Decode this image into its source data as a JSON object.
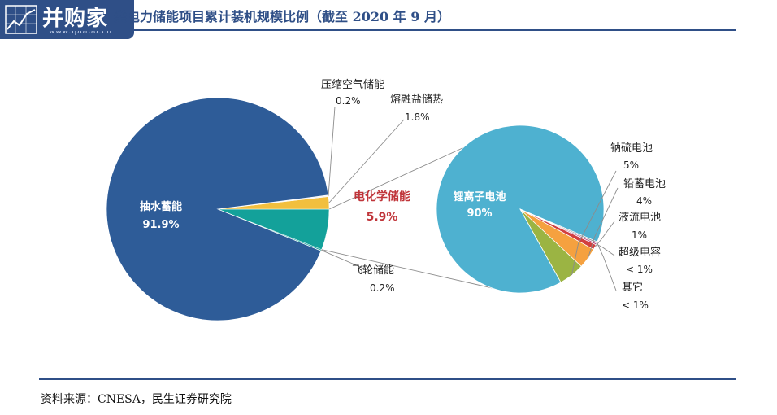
{
  "header": {
    "brand": "并购家",
    "url": "www.ipoipo.cn",
    "title": "类电力储能项目累计装机规模比例（截至 2020 年 9 月）"
  },
  "footer": {
    "source": "资料来源：CNESA，民生证券研究院"
  },
  "colors": {
    "brand": "#2f4f87",
    "pumped_hydro": "#2e5c98",
    "molten_salt": "#f2bf3e",
    "flywheel": "#13a19a",
    "compressed_air": "#f5f5f5",
    "lithium": "#4eb1d0",
    "sodium_sulfur": "#9bb443",
    "lead_carbon": "#f5a13f",
    "flow": "#d2403f",
    "supercap": "#b73a7a",
    "other": "#9a9a9a",
    "highlight_label": "#c0353a"
  },
  "chart_data": [
    {
      "type": "pie",
      "slices": [
        {
          "name": "抽水蓄能",
          "value": 91.9,
          "label": "91.9%"
        },
        {
          "name": "电化学储能",
          "value": 5.9,
          "label": "5.9%"
        },
        {
          "name": "压缩空气储能",
          "value": 0.2,
          "label": "0.2%"
        },
        {
          "name": "熔融盐储热",
          "value": 1.8,
          "label": "1.8%"
        },
        {
          "name": "飞轮储能",
          "value": 0.2,
          "label": "0.2%"
        }
      ]
    },
    {
      "type": "pie",
      "slices": [
        {
          "name": "锂离子电池",
          "value": 90,
          "label": "90%"
        },
        {
          "name": "钠硫电池",
          "value": 5,
          "label": "5%"
        },
        {
          "name": "铅蓄电池",
          "value": 4,
          "label": "4%"
        },
        {
          "name": "液流电池",
          "value": 1,
          "label": "1%"
        },
        {
          "name": "超级电容",
          "value": 0.3,
          "label": "< 1%"
        },
        {
          "name": "其它",
          "value": 0.3,
          "label": "< 1%"
        }
      ]
    }
  ]
}
